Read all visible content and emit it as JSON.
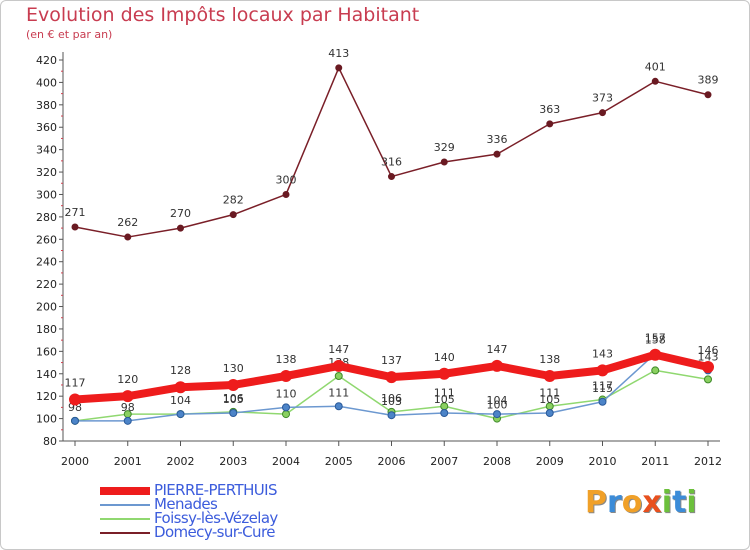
{
  "title": "Evolution des Impôts locaux par Habitant",
  "subtitle": "(en € et par an)",
  "brand": {
    "letters": [
      "P",
      "r",
      "o",
      "x",
      "i",
      "t",
      "i"
    ],
    "letter_colors": [
      "#f0a028",
      "#3c8cd8",
      "#f0a028",
      "#e8501e",
      "#6cc03c",
      "#3c8cd8",
      "#6cc03c"
    ]
  },
  "chart_data": {
    "type": "line",
    "title": "Evolution des Impôts locaux par Habitant",
    "subtitle": "(en € et par an)",
    "xlabel": "",
    "ylabel": "",
    "x": [
      "2000",
      "2001",
      "2002",
      "2003",
      "2004",
      "2005",
      "2006",
      "2007",
      "2008",
      "2009",
      "2010",
      "2011",
      "2012"
    ],
    "ylim": [
      80,
      420
    ],
    "yticks": [
      "80",
      "100",
      "120",
      "140",
      "160",
      "180",
      "200",
      "220",
      "240",
      "260",
      "280",
      "300",
      "320",
      "340",
      "360",
      "380",
      "400",
      "420"
    ],
    "grid": false,
    "legend_position": "bottom-left",
    "series": [
      {
        "name": "Domecy-sur-Cure",
        "color": "#7a1f28",
        "values": [
          271,
          262,
          270,
          282,
          300,
          413,
          316,
          329,
          336,
          363,
          373,
          401,
          389
        ],
        "labels": [
          "271",
          "262",
          "270",
          "282",
          "300",
          "413",
          "316",
          "329",
          "336",
          "363",
          "373",
          "401",
          "389"
        ]
      },
      {
        "name": "Foissy-lès-Vézelay",
        "color": "#90d870",
        "values": [
          98,
          104,
          104,
          106,
          104,
          138,
          106,
          111,
          100,
          111,
          117,
          143,
          135
        ],
        "labels": [
          "98",
          "",
          "104",
          "106",
          "",
          "138",
          "106",
          "111",
          "100",
          "111",
          "117",
          "",
          ""
        ]
      },
      {
        "name": "Menades",
        "color": "#6c98d0",
        "values": [
          98,
          98,
          104,
          105,
          110,
          111,
          103,
          105,
          104,
          105,
          115,
          158,
          143
        ],
        "labels": [
          "",
          "98",
          "",
          "105",
          "110",
          "111",
          "103",
          "105",
          "104",
          "105",
          "115",
          "158",
          "143"
        ]
      },
      {
        "name": "PIERRE-PERTHUIS",
        "color": "#ee1c1c",
        "values": [
          117,
          120,
          128,
          130,
          138,
          147,
          137,
          140,
          147,
          138,
          143,
          157,
          146
        ],
        "labels": [
          "117",
          "120",
          "128",
          "130",
          "138",
          "147",
          "137",
          "140",
          "147",
          "138",
          "143",
          "157",
          "146"
        ]
      }
    ],
    "legend": [
      "PIERRE-PERTHUIS",
      "Menades",
      "Foissy-lès-Vézelay",
      "Domecy-sur-Cure"
    ]
  }
}
